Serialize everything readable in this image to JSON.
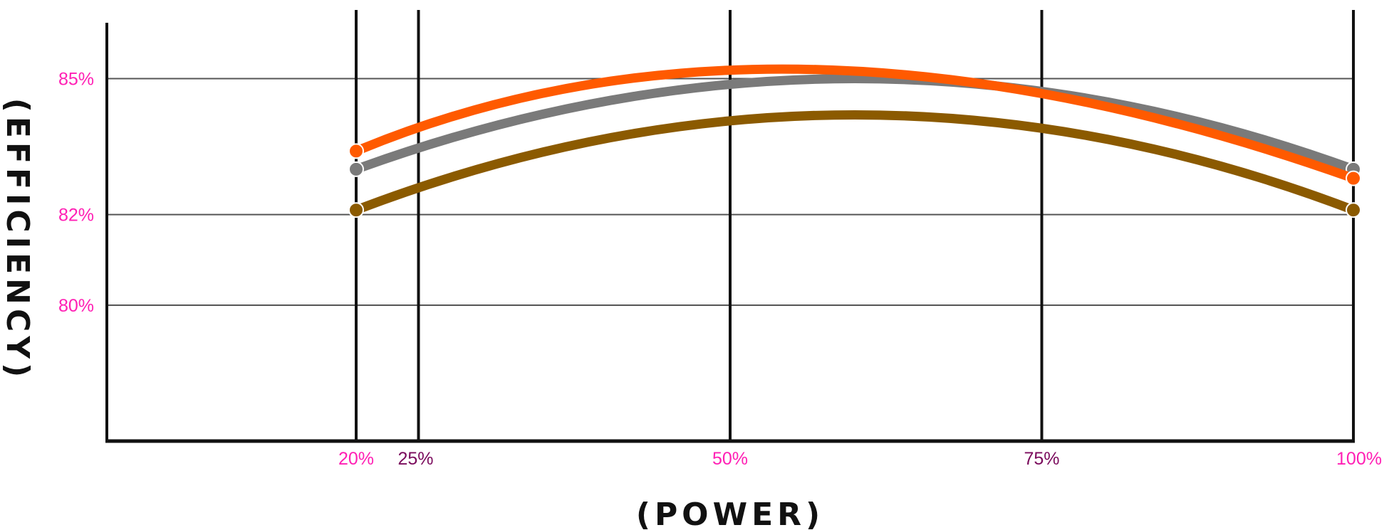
{
  "chart_data": {
    "type": "line",
    "xlabel": "(POWER)",
    "ylabel": "(EFFICIENCY)",
    "xlim": [
      0,
      100
    ],
    "ylim": [
      77,
      86.5
    ],
    "x_ticks": [
      {
        "value": 20,
        "label": "20%",
        "color": "#ff1fb4"
      },
      {
        "value": 25,
        "label": "25%",
        "color": "#7a0a5c"
      },
      {
        "value": 50,
        "label": "50%",
        "color": "#ff1fb4"
      },
      {
        "value": 75,
        "label": "75%",
        "color": "#7a0a5c"
      },
      {
        "value": 100,
        "label": "100%",
        "color": "#ff1fb4"
      }
    ],
    "y_ticks": [
      {
        "value": 85,
        "label": "85%"
      },
      {
        "value": 82,
        "label": "82%"
      },
      {
        "value": 80,
        "label": "80%"
      }
    ],
    "tick_label_color": "#ff1fb4",
    "grid": true,
    "series": [
      {
        "color": "#7a7a7a",
        "x": [
          20,
          100
        ],
        "y": [
          83.0,
          83.0
        ],
        "peak": [
          60,
          85.0
        ]
      },
      {
        "color": "#ff5a00",
        "x": [
          20,
          100
        ],
        "y": [
          83.4,
          82.8
        ],
        "peak": [
          57,
          85.2
        ]
      },
      {
        "color": "#8b5a00",
        "x": [
          20,
          100
        ],
        "y": [
          82.1,
          82.1
        ],
        "peak": [
          60,
          84.2
        ]
      }
    ]
  }
}
